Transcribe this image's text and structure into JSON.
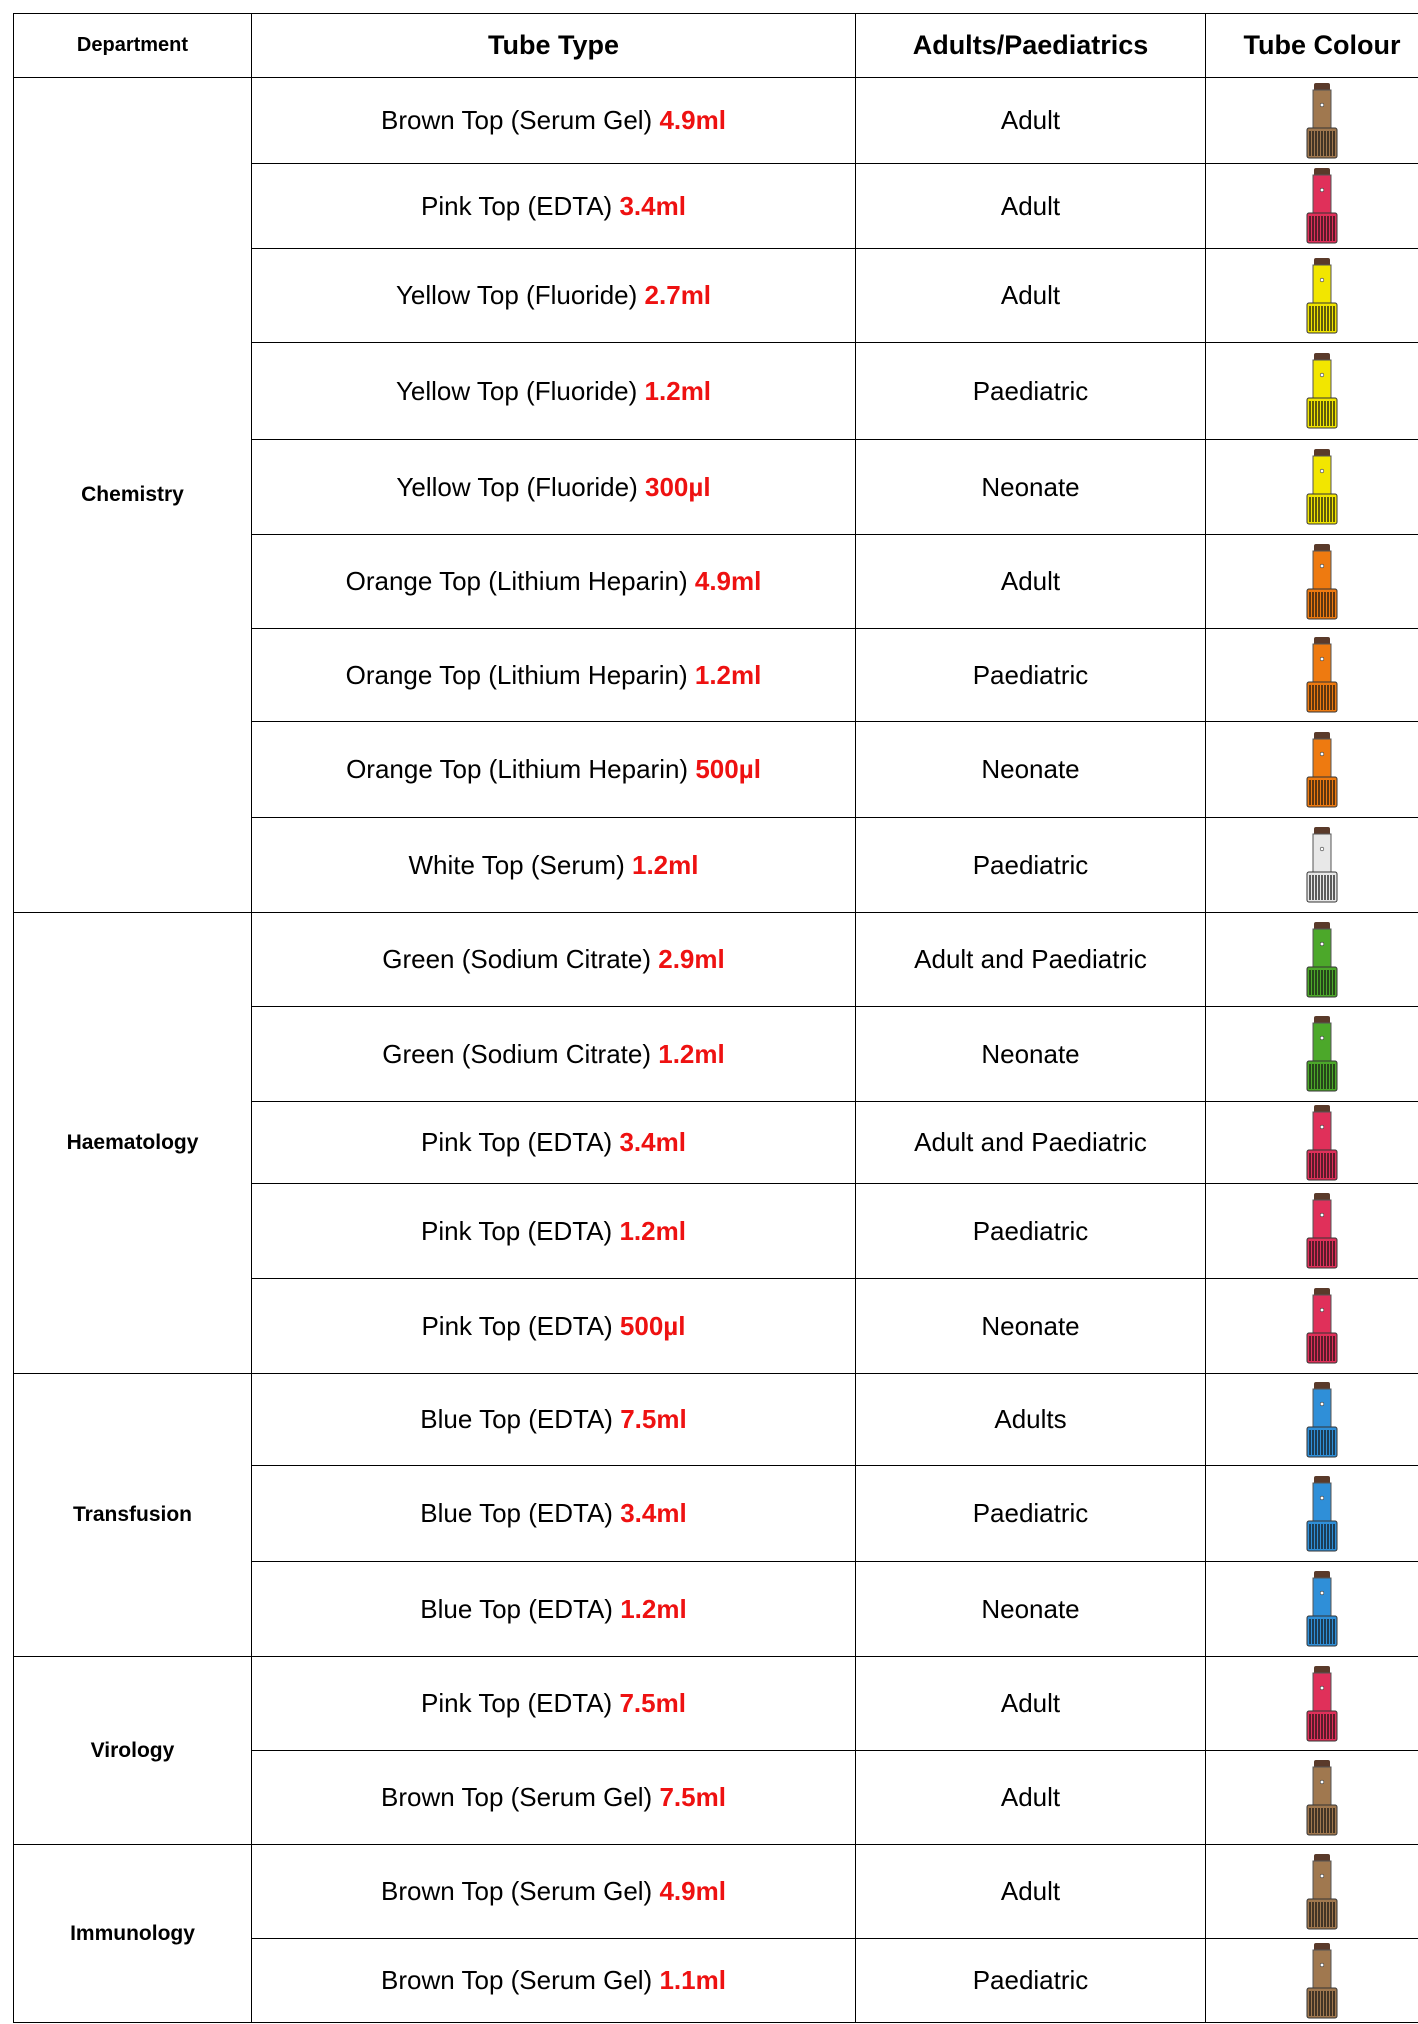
{
  "header": [
    "Department",
    "Tube Type",
    "Adults/Paediatrics",
    "Tube Colour"
  ],
  "groups": [
    {
      "department": "Chemistry",
      "rows": [
        {
          "type": "Brown Top (Serum Gel)",
          "volume": "4.9ml",
          "patient": "Adult",
          "color": "#a0784f"
        },
        {
          "type": "Pink Top (EDTA)",
          "volume": "3.4ml",
          "patient": "Adult",
          "color": "#e0305a"
        },
        {
          "type": "Yellow Top (Fluoride)",
          "volume": "2.7ml",
          "patient": "Adult",
          "color": "#f2e600"
        },
        {
          "type": "Yellow Top (Fluoride)",
          "volume": "1.2ml",
          "patient": "Paediatric",
          "color": "#f2e600"
        },
        {
          "type": "Yellow Top (Fluoride)",
          "volume": "300µl",
          "patient": "Neonate",
          "color": "#f2e600"
        },
        {
          "type": "Orange Top (Lithium Heparin)",
          "volume": "4.9ml",
          "patient": "Adult",
          "color": "#ee7a10"
        },
        {
          "type": "Orange Top (Lithium Heparin)",
          "volume": "1.2ml",
          "patient": "Paediatric",
          "color": "#ee7a10"
        },
        {
          "type": "Orange Top (Lithium Heparin)",
          "volume": "500µl",
          "patient": "Neonate",
          "color": "#ee7a10"
        },
        {
          "type": "White Top (Serum)",
          "volume": "1.2ml",
          "patient": "Paediatric",
          "color": "#e8e8e8"
        }
      ]
    },
    {
      "department": "Haematology",
      "rows": [
        {
          "type": "Green (Sodium Citrate)",
          "volume": "2.9ml",
          "patient": "Adult and Paediatric",
          "color": "#4ca82a"
        },
        {
          "type": "Green (Sodium Citrate)",
          "volume": "1.2ml",
          "patient": "Neonate",
          "color": "#4ca82a"
        },
        {
          "type": "Pink Top (EDTA)",
          "volume": "3.4ml",
          "patient": "Adult and Paediatric",
          "color": "#e0305a"
        },
        {
          "type": "Pink Top (EDTA)",
          "volume": "1.2ml",
          "patient": "Paediatric",
          "color": "#e0305a"
        },
        {
          "type": "Pink Top (EDTA)",
          "volume": "500µl",
          "patient": "Neonate",
          "color": "#e0305a"
        }
      ]
    },
    {
      "department": "Transfusion",
      "rows": [
        {
          "type": "Blue Top (EDTA)",
          "volume": "7.5ml",
          "patient": "Adults",
          "color": "#2f8fd8"
        },
        {
          "type": "Blue Top (EDTA)",
          "volume": "3.4ml",
          "patient": "Paediatric",
          "color": "#2f8fd8"
        },
        {
          "type": "Blue Top (EDTA)",
          "volume": "1.2ml",
          "patient": "Neonate",
          "color": "#2f8fd8"
        }
      ]
    },
    {
      "department": "Virology",
      "rows": [
        {
          "type": "Pink Top (EDTA)",
          "volume": "7.5ml",
          "patient": "Adult",
          "color": "#e0305a"
        },
        {
          "type": "Brown Top (Serum Gel)",
          "volume": "7.5ml",
          "patient": "Adult",
          "color": "#a0784f"
        }
      ]
    },
    {
      "department": "Immunology",
      "rows": [
        {
          "type": "Brown Top (Serum Gel)",
          "volume": "4.9ml",
          "patient": "Adult",
          "color": "#a0784f"
        },
        {
          "type": "Brown Top (Serum Gel)",
          "volume": "1.1ml",
          "patient": "Paediatric",
          "color": "#a0784f"
        }
      ]
    }
  ]
}
